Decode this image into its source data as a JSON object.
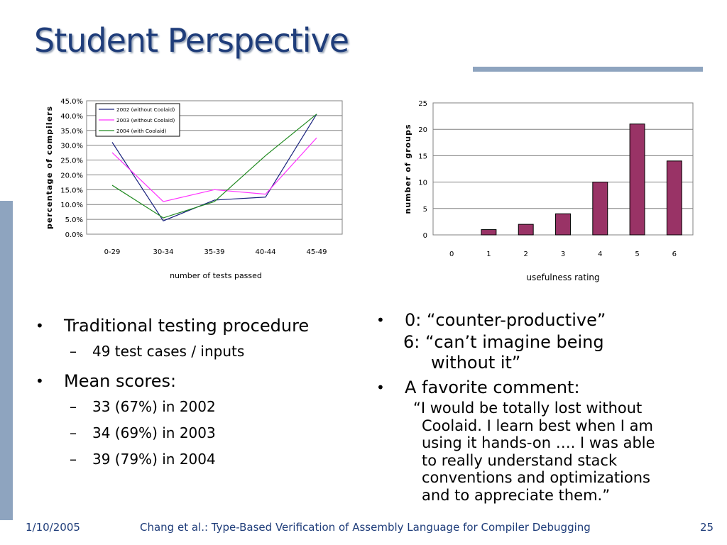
{
  "slide": {
    "title": "Student Perspective",
    "accent_color": "#1f3d7a",
    "rule_color": "#8ea4bf"
  },
  "left_bullets": {
    "b1": "Traditional testing procedure",
    "b1_sub": "49 test cases / inputs",
    "b2": "Mean scores:",
    "b2_subs": [
      "33 (67%) in 2002",
      "34 (69%) in 2003",
      "39 (79%) in 2004"
    ]
  },
  "right_bullets": {
    "b1_line1": "0:  “counter-productive”",
    "b1_line2": "6:  “can’t imagine being",
    "b1_line3": "without it”",
    "b2": "A favorite comment:",
    "quote_lines": [
      "“I would be totally lost without",
      "Coolaid.  I learn best when I am",
      "using it hands-on …. I was able",
      "to really understand stack",
      "conventions and optimizations",
      "and to appreciate them.”"
    ]
  },
  "footer": {
    "date": "1/10/2005",
    "citation": "Chang et al.: Type-Based Verification of Assembly Language for Compiler Debugging",
    "page": "25"
  },
  "chart_data": [
    {
      "type": "line",
      "xlabel": "number of tests passed",
      "ylabel": "percentage of compilers",
      "categories": [
        "0-29",
        "30-34",
        "35-39",
        "40-44",
        "45-49"
      ],
      "ylim": [
        0,
        45
      ],
      "yticks": [
        "0.0%",
        "5.0%",
        "10.0%",
        "15.0%",
        "20.0%",
        "25.0%",
        "30.0%",
        "35.0%",
        "40.0%",
        "45.0%"
      ],
      "grid": true,
      "legend_position": "top-left",
      "series": [
        {
          "name": "2002 (without Coolaid)",
          "color": "#1a237e",
          "values": [
            31,
            4.5,
            11.5,
            12.5,
            40.5
          ]
        },
        {
          "name": "2003 (without Coolaid)",
          "color": "#ff33ff",
          "values": [
            27.5,
            11,
            15,
            13.5,
            32.5
          ]
        },
        {
          "name": "2004 (with Coolaid)",
          "color": "#228b22",
          "values": [
            16.5,
            5.5,
            11,
            26.5,
            40.5
          ]
        }
      ]
    },
    {
      "type": "bar",
      "xlabel": "usefulness rating",
      "ylabel": "number of groups",
      "categories": [
        "0",
        "1",
        "2",
        "3",
        "4",
        "5",
        "6"
      ],
      "values": [
        0,
        1,
        2,
        4,
        10,
        21,
        14
      ],
      "ylim": [
        0,
        25
      ],
      "yticks": [
        "0",
        "5",
        "10",
        "15",
        "20",
        "25"
      ],
      "grid": true,
      "bar_color": "#993366"
    }
  ]
}
